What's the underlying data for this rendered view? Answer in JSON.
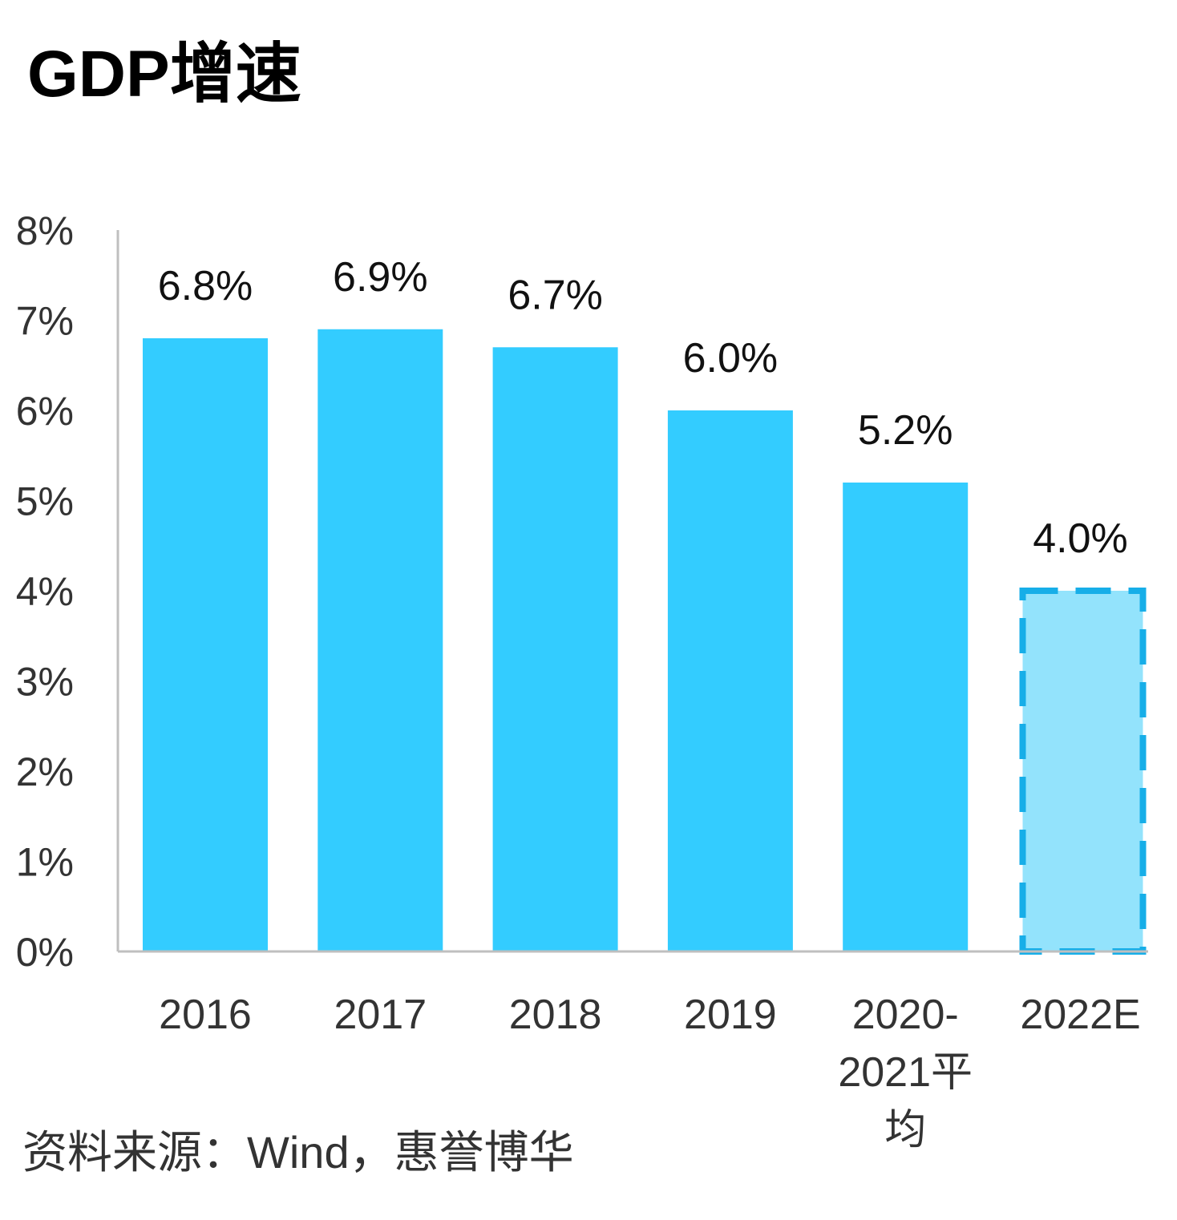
{
  "title": "GDP增速",
  "source": "资料来源：Wind，惠誉博华",
  "colors": {
    "bar": "#33CCFF",
    "estimate_fill": "#93E3FC",
    "estimate_border": "#17AEE8",
    "axis": "#BFBFBF"
  },
  "chart_data": {
    "type": "bar",
    "categories": [
      "2016",
      "2017",
      "2018",
      "2019",
      "2020-2021平均",
      "2022E"
    ],
    "category_lines": [
      [
        "2016"
      ],
      [
        "2017"
      ],
      [
        "2018"
      ],
      [
        "2019"
      ],
      [
        "2020-",
        "2021平",
        "均"
      ],
      [
        "2022E"
      ]
    ],
    "values": [
      6.8,
      6.9,
      6.7,
      6.0,
      5.2,
      4.0
    ],
    "data_labels": [
      "6.8%",
      "6.9%",
      "6.7%",
      "6.0%",
      "5.2%",
      "4.0%"
    ],
    "estimate": [
      false,
      false,
      false,
      false,
      false,
      true
    ],
    "yticks": [
      0,
      1,
      2,
      3,
      4,
      5,
      6,
      7,
      8
    ],
    "ytick_labels": [
      "0%",
      "1%",
      "2%",
      "3%",
      "4%",
      "5%",
      "6%",
      "7%",
      "8%"
    ],
    "ylim": [
      0,
      8
    ],
    "grid": false,
    "legend": "none"
  }
}
